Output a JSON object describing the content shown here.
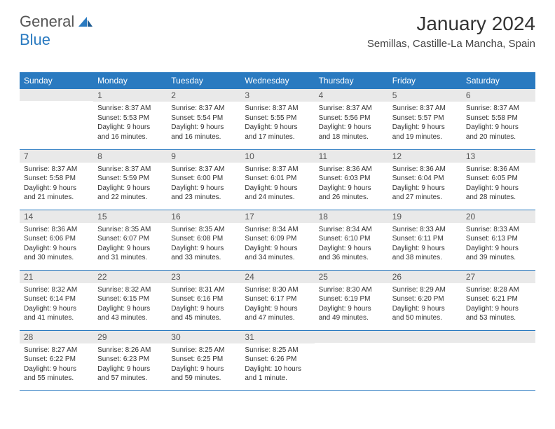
{
  "logo": {
    "text1": "General",
    "text2": "Blue"
  },
  "title": "January 2024",
  "location": "Semillas, Castille-La Mancha, Spain",
  "colors": {
    "header_bg": "#2a7ac0",
    "daynum_bg": "#e9e9e9",
    "rule": "#2a7ac0"
  },
  "days": [
    "Sunday",
    "Monday",
    "Tuesday",
    "Wednesday",
    "Thursday",
    "Friday",
    "Saturday"
  ],
  "weeks": [
    [
      null,
      {
        "n": "1",
        "sr": "Sunrise: 8:37 AM",
        "ss": "Sunset: 5:53 PM",
        "dl": "Daylight: 9 hours and 16 minutes."
      },
      {
        "n": "2",
        "sr": "Sunrise: 8:37 AM",
        "ss": "Sunset: 5:54 PM",
        "dl": "Daylight: 9 hours and 16 minutes."
      },
      {
        "n": "3",
        "sr": "Sunrise: 8:37 AM",
        "ss": "Sunset: 5:55 PM",
        "dl": "Daylight: 9 hours and 17 minutes."
      },
      {
        "n": "4",
        "sr": "Sunrise: 8:37 AM",
        "ss": "Sunset: 5:56 PM",
        "dl": "Daylight: 9 hours and 18 minutes."
      },
      {
        "n": "5",
        "sr": "Sunrise: 8:37 AM",
        "ss": "Sunset: 5:57 PM",
        "dl": "Daylight: 9 hours and 19 minutes."
      },
      {
        "n": "6",
        "sr": "Sunrise: 8:37 AM",
        "ss": "Sunset: 5:58 PM",
        "dl": "Daylight: 9 hours and 20 minutes."
      }
    ],
    [
      {
        "n": "7",
        "sr": "Sunrise: 8:37 AM",
        "ss": "Sunset: 5:58 PM",
        "dl": "Daylight: 9 hours and 21 minutes."
      },
      {
        "n": "8",
        "sr": "Sunrise: 8:37 AM",
        "ss": "Sunset: 5:59 PM",
        "dl": "Daylight: 9 hours and 22 minutes."
      },
      {
        "n": "9",
        "sr": "Sunrise: 8:37 AM",
        "ss": "Sunset: 6:00 PM",
        "dl": "Daylight: 9 hours and 23 minutes."
      },
      {
        "n": "10",
        "sr": "Sunrise: 8:37 AM",
        "ss": "Sunset: 6:01 PM",
        "dl": "Daylight: 9 hours and 24 minutes."
      },
      {
        "n": "11",
        "sr": "Sunrise: 8:36 AM",
        "ss": "Sunset: 6:03 PM",
        "dl": "Daylight: 9 hours and 26 minutes."
      },
      {
        "n": "12",
        "sr": "Sunrise: 8:36 AM",
        "ss": "Sunset: 6:04 PM",
        "dl": "Daylight: 9 hours and 27 minutes."
      },
      {
        "n": "13",
        "sr": "Sunrise: 8:36 AM",
        "ss": "Sunset: 6:05 PM",
        "dl": "Daylight: 9 hours and 28 minutes."
      }
    ],
    [
      {
        "n": "14",
        "sr": "Sunrise: 8:36 AM",
        "ss": "Sunset: 6:06 PM",
        "dl": "Daylight: 9 hours and 30 minutes."
      },
      {
        "n": "15",
        "sr": "Sunrise: 8:35 AM",
        "ss": "Sunset: 6:07 PM",
        "dl": "Daylight: 9 hours and 31 minutes."
      },
      {
        "n": "16",
        "sr": "Sunrise: 8:35 AM",
        "ss": "Sunset: 6:08 PM",
        "dl": "Daylight: 9 hours and 33 minutes."
      },
      {
        "n": "17",
        "sr": "Sunrise: 8:34 AM",
        "ss": "Sunset: 6:09 PM",
        "dl": "Daylight: 9 hours and 34 minutes."
      },
      {
        "n": "18",
        "sr": "Sunrise: 8:34 AM",
        "ss": "Sunset: 6:10 PM",
        "dl": "Daylight: 9 hours and 36 minutes."
      },
      {
        "n": "19",
        "sr": "Sunrise: 8:33 AM",
        "ss": "Sunset: 6:11 PM",
        "dl": "Daylight: 9 hours and 38 minutes."
      },
      {
        "n": "20",
        "sr": "Sunrise: 8:33 AM",
        "ss": "Sunset: 6:13 PM",
        "dl": "Daylight: 9 hours and 39 minutes."
      }
    ],
    [
      {
        "n": "21",
        "sr": "Sunrise: 8:32 AM",
        "ss": "Sunset: 6:14 PM",
        "dl": "Daylight: 9 hours and 41 minutes."
      },
      {
        "n": "22",
        "sr": "Sunrise: 8:32 AM",
        "ss": "Sunset: 6:15 PM",
        "dl": "Daylight: 9 hours and 43 minutes."
      },
      {
        "n": "23",
        "sr": "Sunrise: 8:31 AM",
        "ss": "Sunset: 6:16 PM",
        "dl": "Daylight: 9 hours and 45 minutes."
      },
      {
        "n": "24",
        "sr": "Sunrise: 8:30 AM",
        "ss": "Sunset: 6:17 PM",
        "dl": "Daylight: 9 hours and 47 minutes."
      },
      {
        "n": "25",
        "sr": "Sunrise: 8:30 AM",
        "ss": "Sunset: 6:19 PM",
        "dl": "Daylight: 9 hours and 49 minutes."
      },
      {
        "n": "26",
        "sr": "Sunrise: 8:29 AM",
        "ss": "Sunset: 6:20 PM",
        "dl": "Daylight: 9 hours and 50 minutes."
      },
      {
        "n": "27",
        "sr": "Sunrise: 8:28 AM",
        "ss": "Sunset: 6:21 PM",
        "dl": "Daylight: 9 hours and 53 minutes."
      }
    ],
    [
      {
        "n": "28",
        "sr": "Sunrise: 8:27 AM",
        "ss": "Sunset: 6:22 PM",
        "dl": "Daylight: 9 hours and 55 minutes."
      },
      {
        "n": "29",
        "sr": "Sunrise: 8:26 AM",
        "ss": "Sunset: 6:23 PM",
        "dl": "Daylight: 9 hours and 57 minutes."
      },
      {
        "n": "30",
        "sr": "Sunrise: 8:25 AM",
        "ss": "Sunset: 6:25 PM",
        "dl": "Daylight: 9 hours and 59 minutes."
      },
      {
        "n": "31",
        "sr": "Sunrise: 8:25 AM",
        "ss": "Sunset: 6:26 PM",
        "dl": "Daylight: 10 hours and 1 minute."
      },
      null,
      null,
      null
    ]
  ]
}
